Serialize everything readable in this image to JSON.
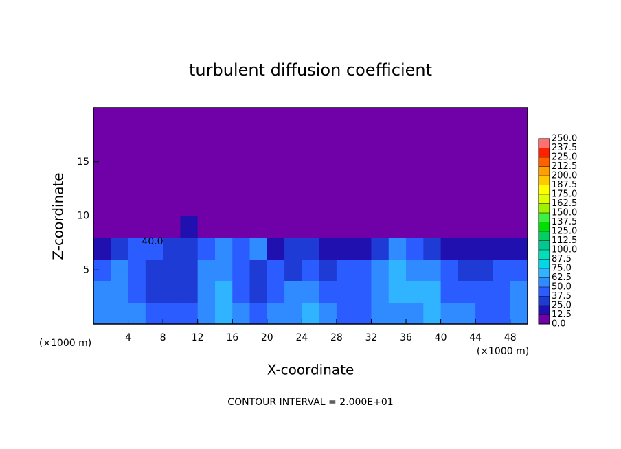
{
  "chart_data": {
    "type": "heatmap",
    "title": "turbulent diffusion coefficient",
    "x_label": "X-coordinate",
    "y_label": "Z-coordinate",
    "x_unit": "(×1000 m)",
    "y_unit": "(×1000 m)",
    "annotations": [
      "CONTOUR INTERVAL = 2.000E+01",
      "40.0"
    ],
    "xlim": [
      0,
      50
    ],
    "ylim": [
      0,
      20
    ],
    "xticks": [
      4,
      8,
      12,
      16,
      20,
      24,
      28,
      32,
      36,
      40,
      44,
      48
    ],
    "yticks": [
      5,
      10,
      15
    ],
    "x": [
      1,
      3,
      5,
      7,
      9,
      11,
      13,
      15,
      17,
      19,
      21,
      23,
      25,
      27,
      29,
      31,
      33,
      35,
      37,
      39,
      41,
      43,
      45,
      47,
      49
    ],
    "y": [
      1,
      3,
      5,
      7,
      9,
      11,
      13,
      15,
      17,
      19
    ],
    "cell_size": 2,
    "z": [
      [
        55,
        60,
        50,
        45,
        45,
        45,
        60,
        70,
        55,
        45,
        50,
        60,
        65,
        55,
        45,
        45,
        50,
        60,
        60,
        70,
        55,
        50,
        45,
        45,
        50
      ],
      [
        50,
        55,
        40,
        35,
        35,
        35,
        60,
        65,
        45,
        35,
        45,
        55,
        50,
        45,
        40,
        45,
        55,
        65,
        70,
        65,
        45,
        40,
        40,
        45,
        50
      ],
      [
        45,
        50,
        40,
        35,
        35,
        35,
        55,
        60,
        40,
        30,
        45,
        35,
        40,
        35,
        40,
        40,
        55,
        65,
        60,
        60,
        45,
        35,
        35,
        40,
        45
      ],
      [
        20,
        30,
        40,
        45,
        35,
        30,
        45,
        50,
        45,
        50,
        20,
        30,
        25,
        20,
        20,
        15,
        30,
        50,
        45,
        30,
        20,
        15,
        20,
        15,
        15
      ],
      [
        0,
        0,
        0,
        0,
        0,
        15,
        10,
        0,
        0,
        0,
        0,
        0,
        0,
        0,
        0,
        0,
        0,
        0,
        0,
        0,
        0,
        0,
        0,
        0,
        0
      ],
      [
        0,
        0,
        0,
        0,
        0,
        0,
        0,
        0,
        0,
        0,
        0,
        0,
        0,
        0,
        0,
        0,
        0,
        0,
        0,
        0,
        0,
        0,
        0,
        0,
        0
      ],
      [
        0,
        0,
        0,
        0,
        0,
        0,
        0,
        0,
        0,
        0,
        0,
        0,
        0,
        0,
        0,
        0,
        0,
        0,
        0,
        0,
        0,
        0,
        0,
        0,
        0
      ],
      [
        0,
        0,
        0,
        0,
        0,
        0,
        0,
        0,
        0,
        0,
        0,
        0,
        0,
        0,
        0,
        0,
        0,
        0,
        0,
        0,
        0,
        0,
        0,
        0,
        0
      ],
      [
        0,
        0,
        0,
        0,
        0,
        0,
        0,
        0,
        0,
        0,
        0,
        0,
        0,
        0,
        0,
        0,
        0,
        0,
        0,
        0,
        0,
        0,
        0,
        0,
        0
      ],
      [
        0,
        0,
        0,
        0,
        0,
        0,
        0,
        0,
        0,
        0,
        0,
        0,
        0,
        0,
        0,
        0,
        0,
        0,
        0,
        0,
        0,
        0,
        0,
        0,
        0
      ]
    ],
    "colorbar_ticks": [
      {
        "value": 0,
        "label": "0.0"
      },
      12.5,
      {
        "value": 25,
        "label": "25.0"
      },
      37.5,
      {
        "value": 50,
        "label": "50.0"
      },
      62.5,
      {
        "value": 75,
        "label": "75.0"
      },
      87.5,
      {
        "value": 100,
        "label": "100.0"
      },
      112.5,
      {
        "value": 125,
        "label": "125.0"
      },
      137.5,
      {
        "value": 150,
        "label": "150.0"
      },
      162.5,
      {
        "value": 175,
        "label": "175.0"
      },
      187.5,
      {
        "value": 200,
        "label": "200.0"
      },
      212.5,
      {
        "value": 225,
        "label": "225.0"
      },
      237.5,
      {
        "value": 250,
        "label": "250.0"
      }
    ],
    "colors": [
      "#7000a8",
      "#2010b0",
      "#1f3bd6",
      "#2b5cff",
      "#2f8bff",
      "#30b4ff",
      "#00d8e8",
      "#00e0b8",
      "#00c890",
      "#00d060",
      "#00e000",
      "#40f040",
      "#a0f000",
      "#e0ff00",
      "#ffff00",
      "#ffc800",
      "#ffa000",
      "#ff6000",
      "#ff2000",
      "#ff7070"
    ]
  }
}
